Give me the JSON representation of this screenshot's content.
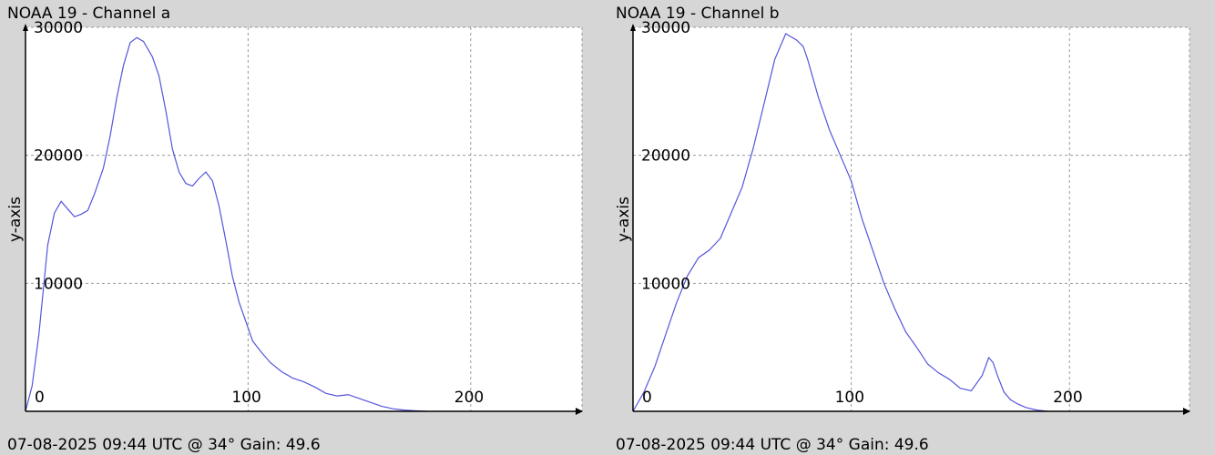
{
  "chart_data": [
    {
      "type": "line",
      "title": "NOAA 19 - Channel a",
      "ylabel": "y-axis",
      "footer": "07-08-2025 09:44 UTC @ 34° Gain: 49.6",
      "xlim": [
        0,
        250
      ],
      "ylim": [
        0,
        30000
      ],
      "x_ticks": [
        0,
        100,
        200
      ],
      "y_ticks": [
        10000,
        20000,
        30000
      ],
      "grid": true,
      "series": [
        {
          "color": "#5555dd",
          "x": [
            0,
            3,
            6,
            10,
            13,
            16,
            19,
            22,
            25,
            28,
            31,
            35,
            38,
            41,
            44,
            47,
            50,
            53,
            55,
            57,
            60,
            63,
            66,
            69,
            72,
            75,
            78,
            81,
            84,
            87,
            90,
            93,
            96,
            99,
            102,
            106,
            110,
            115,
            120,
            125,
            130,
            135,
            140,
            145,
            150,
            155,
            160,
            165,
            170,
            175,
            180
          ],
          "y": [
            0,
            2000,
            6000,
            13000,
            15500,
            16400,
            15800,
            15200,
            15400,
            15700,
            17000,
            19000,
            21500,
            24500,
            27000,
            28800,
            29200,
            28900,
            28300,
            27700,
            26200,
            23500,
            20500,
            18700,
            17800,
            17600,
            18200,
            18700,
            18000,
            16000,
            13300,
            10500,
            8500,
            7000,
            5500,
            4600,
            3800,
            3100,
            2600,
            2300,
            1900,
            1400,
            1200,
            1300,
            1000,
            700,
            400,
            200,
            100,
            50,
            0
          ]
        }
      ]
    },
    {
      "type": "line",
      "title": "NOAA 19 - Channel b",
      "ylabel": "y-axis",
      "footer": "07-08-2025 09:44 UTC @ 34° Gain: 49.6",
      "xlim": [
        0,
        255
      ],
      "ylim": [
        0,
        30000
      ],
      "x_ticks": [
        0,
        100,
        200
      ],
      "y_ticks": [
        10000,
        20000,
        30000
      ],
      "grid": true,
      "series": [
        {
          "color": "#5555dd",
          "x": [
            0,
            5,
            10,
            15,
            20,
            25,
            30,
            35,
            40,
            45,
            50,
            55,
            60,
            65,
            70,
            75,
            78,
            80,
            85,
            90,
            95,
            100,
            105,
            110,
            115,
            120,
            125,
            130,
            135,
            140,
            145,
            150,
            155,
            160,
            163,
            165,
            167,
            170,
            173,
            176,
            180,
            185,
            190
          ],
          "y": [
            0,
            1500,
            3500,
            6000,
            8500,
            10600,
            12000,
            12600,
            13500,
            15500,
            17500,
            20500,
            24000,
            27500,
            29500,
            29000,
            28500,
            27500,
            24500,
            22000,
            20000,
            18000,
            15000,
            12500,
            10000,
            8000,
            6200,
            5000,
            3700,
            3000,
            2500,
            1800,
            1600,
            2800,
            4200,
            3800,
            2800,
            1500,
            900,
            600,
            300,
            100,
            0
          ]
        }
      ]
    }
  ]
}
